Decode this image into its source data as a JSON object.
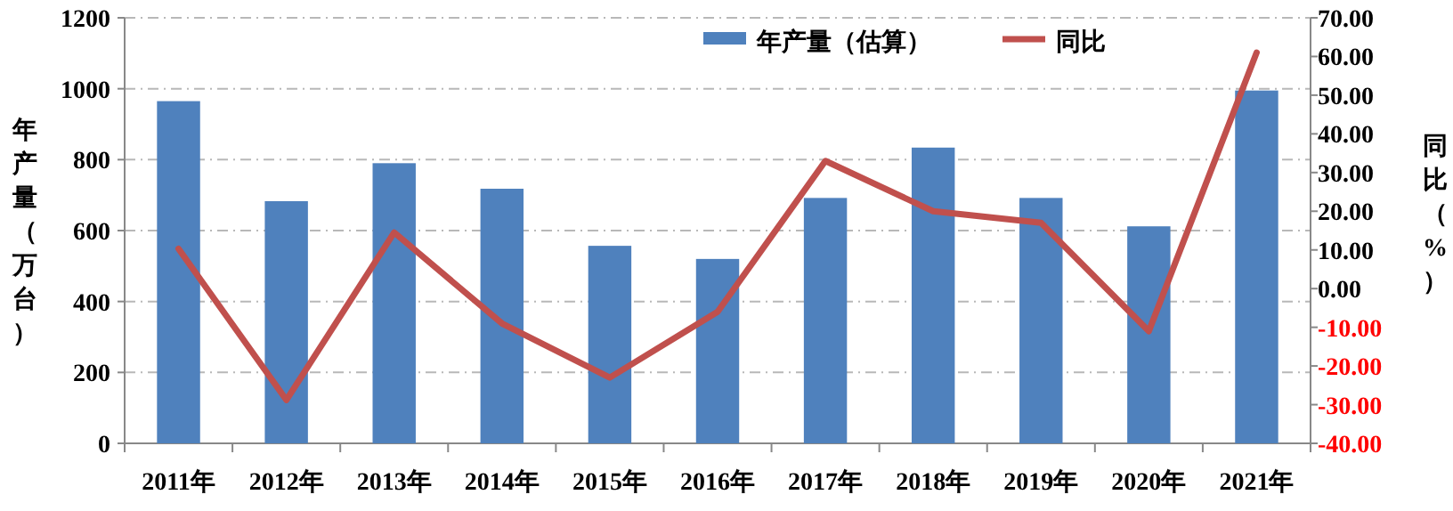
{
  "chart_data": {
    "type": "bar",
    "ylabel": "年产量（万台）",
    "y2label": "同比（%）",
    "categories": [
      "2011年",
      "2012年",
      "2013年",
      "2014年",
      "2015年",
      "2016年",
      "2017年",
      "2018年",
      "2019年",
      "2020年",
      "2021年"
    ],
    "series": [
      {
        "name": "年产量（估算）",
        "color": "#4f81bd",
        "values": [
          965,
          683,
          790,
          718,
          557,
          520,
          692,
          834,
          692,
          612,
          995
        ]
      },
      {
        "name": "同比",
        "type": "line",
        "axis": "y2",
        "color": "#c0504d",
        "values": [
          10.3,
          -28.8,
          14.5,
          -9,
          -23,
          -6,
          33,
          20,
          17,
          -11,
          61
        ]
      }
    ],
    "ylim": [
      0,
      1200
    ],
    "yticks": [
      0,
      200,
      400,
      600,
      800,
      1000,
      1200
    ],
    "y2lim": [
      -40,
      70
    ],
    "y2ticks": [
      {
        "value": 70,
        "label": "70.00"
      },
      {
        "value": 60,
        "label": "60.00"
      },
      {
        "value": 50,
        "label": "50.00"
      },
      {
        "value": 40,
        "label": "40.00"
      },
      {
        "value": 30,
        "label": "30.00"
      },
      {
        "value": 20,
        "label": "20.00"
      },
      {
        "value": 10,
        "label": "10.00"
      },
      {
        "value": 0,
        "label": "0.00"
      },
      {
        "value": -10,
        "label": "-10.00"
      },
      {
        "value": -20,
        "label": "-20.00"
      },
      {
        "value": -30,
        "label": "-30.00"
      },
      {
        "value": -40,
        "label": "-40.00"
      }
    ],
    "grid": "y",
    "legend": "top",
    "marker": "none",
    "line_style": "solid"
  }
}
